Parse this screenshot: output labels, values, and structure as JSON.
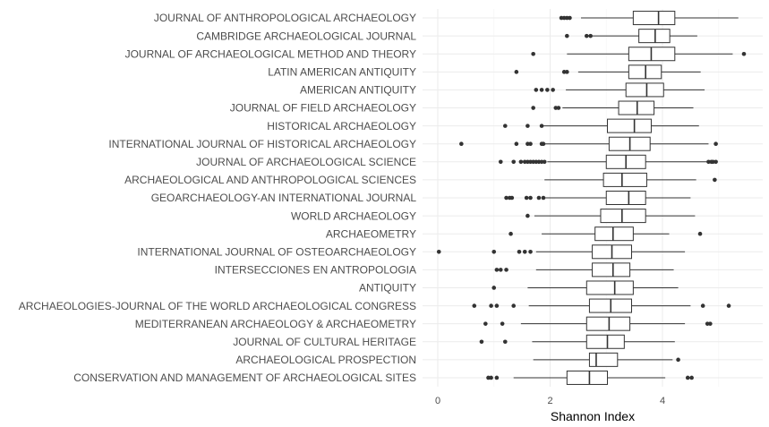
{
  "chart_data": {
    "type": "boxplot",
    "orientation": "horizontal",
    "xlabel": "Shannon Index",
    "ylabel": "",
    "xlim": [
      -0.3,
      5.8
    ],
    "x_ticks": [
      0,
      2,
      4
    ],
    "x_tick_labels": [
      "0",
      "2",
      "4"
    ],
    "grid": true,
    "categories": [
      {
        "name": "JOURNAL OF ANTHROPOLOGICAL ARCHAEOLOGY",
        "min": 2.55,
        "q1": 3.48,
        "median": 3.93,
        "q3": 4.22,
        "max": 5.35,
        "outliers": [
          2.2,
          2.25,
          2.3,
          2.35
        ]
      },
      {
        "name": "CAMBRIDGE ARCHAEOLOGICAL JOURNAL",
        "min": 2.75,
        "q1": 3.58,
        "median": 3.87,
        "q3": 4.13,
        "max": 4.62,
        "outliers": [
          2.3,
          2.65,
          2.72
        ]
      },
      {
        "name": "JOURNAL OF ARCHAEOLOGICAL METHOD AND THEORY",
        "min": 2.3,
        "q1": 3.4,
        "median": 3.8,
        "q3": 4.22,
        "max": 5.25,
        "outliers": [
          1.7,
          5.45
        ]
      },
      {
        "name": "LATIN AMERICAN ANTIQUITY",
        "min": 2.5,
        "q1": 3.4,
        "median": 3.7,
        "q3": 3.98,
        "max": 4.68,
        "outliers": [
          1.4,
          2.25,
          2.3
        ]
      },
      {
        "name": "AMERICAN ANTIQUITY",
        "min": 2.28,
        "q1": 3.35,
        "median": 3.72,
        "q3": 4.02,
        "max": 4.75,
        "outliers": [
          1.75,
          1.85,
          1.95,
          2.05
        ]
      },
      {
        "name": "JOURNAL OF FIELD ARCHAEOLOGY",
        "min": 2.22,
        "q1": 3.22,
        "median": 3.55,
        "q3": 3.85,
        "max": 4.55,
        "outliers": [
          1.7,
          2.1,
          2.15
        ]
      },
      {
        "name": "HISTORICAL ARCHAEOLOGY",
        "min": 1.85,
        "q1": 3.02,
        "median": 3.5,
        "q3": 3.8,
        "max": 4.65,
        "outliers": [
          1.2,
          1.6,
          1.85
        ]
      },
      {
        "name": "INTERNATIONAL JOURNAL OF HISTORICAL ARCHAEOLOGY",
        "min": 1.9,
        "q1": 3.05,
        "median": 3.42,
        "q3": 3.78,
        "max": 4.82,
        "outliers": [
          0.42,
          1.4,
          1.6,
          1.65,
          1.85,
          1.88,
          4.95
        ]
      },
      {
        "name": "JOURNAL OF ARCHAEOLOGICAL SCIENCE",
        "min": 1.95,
        "q1": 3.0,
        "median": 3.35,
        "q3": 3.7,
        "max": 4.8,
        "outliers": [
          1.12,
          1.35,
          1.48,
          1.55,
          1.6,
          1.65,
          1.7,
          1.75,
          1.8,
          1.85,
          1.9,
          4.82,
          4.87,
          4.9,
          4.95
        ]
      },
      {
        "name": "ARCHAEOLOGICAL AND ANTHROPOLOGICAL SCIENCES",
        "min": 1.9,
        "q1": 2.95,
        "median": 3.28,
        "q3": 3.72,
        "max": 4.6,
        "outliers": [
          4.93
        ]
      },
      {
        "name": "GEOARCHAEOLOGY-AN INTERNATIONAL JOURNAL",
        "min": 1.9,
        "q1": 3.0,
        "median": 3.4,
        "q3": 3.7,
        "max": 4.5,
        "outliers": [
          1.22,
          1.28,
          1.32,
          1.58,
          1.65,
          1.8,
          1.88
        ]
      },
      {
        "name": "WORLD ARCHAEOLOGY",
        "min": 1.72,
        "q1": 2.9,
        "median": 3.28,
        "q3": 3.7,
        "max": 4.58,
        "outliers": [
          1.6
        ]
      },
      {
        "name": "ARCHAEOMETRY",
        "min": 1.85,
        "q1": 2.8,
        "median": 3.12,
        "q3": 3.48,
        "max": 4.12,
        "outliers": [
          1.3,
          4.67
        ]
      },
      {
        "name": "INTERNATIONAL JOURNAL OF OSTEOARCHAEOLOGY",
        "min": 1.75,
        "q1": 2.75,
        "median": 3.1,
        "q3": 3.45,
        "max": 4.4,
        "outliers": [
          0.02,
          1.0,
          1.45,
          1.55,
          1.65
        ]
      },
      {
        "name": "INTERSECCIONES EN ANTROPOLOGIA",
        "min": 1.75,
        "q1": 2.75,
        "median": 3.12,
        "q3": 3.42,
        "max": 4.2,
        "outliers": [
          1.05,
          1.12,
          1.22
        ]
      },
      {
        "name": "ANTIQUITY",
        "min": 1.6,
        "q1": 2.65,
        "median": 3.15,
        "q3": 3.48,
        "max": 4.28,
        "outliers": [
          1.0
        ]
      },
      {
        "name": "ARCHAEOLOGIES-JOURNAL OF THE WORLD ARCHAEOLOGICAL CONGRESS",
        "min": 1.62,
        "q1": 2.7,
        "median": 3.08,
        "q3": 3.45,
        "max": 4.5,
        "outliers": [
          0.65,
          0.95,
          1.05,
          1.35,
          4.72,
          5.18
        ]
      },
      {
        "name": "MEDITERRANEAN ARCHAEOLOGY & ARCHAEOMETRY",
        "min": 1.48,
        "q1": 2.65,
        "median": 3.05,
        "q3": 3.42,
        "max": 4.4,
        "outliers": [
          0.85,
          1.15,
          4.8,
          4.85
        ]
      },
      {
        "name": "JOURNAL OF CULTURAL HERITAGE",
        "min": 1.68,
        "q1": 2.65,
        "median": 3.02,
        "q3": 3.32,
        "max": 4.22,
        "outliers": [
          0.78,
          1.2
        ]
      },
      {
        "name": "ARCHAEOLOGICAL PROSPECTION",
        "min": 1.7,
        "q1": 2.7,
        "median": 2.82,
        "q3": 3.2,
        "max": 4.18,
        "outliers": [
          4.28
        ]
      },
      {
        "name": "CONSERVATION AND MANAGEMENT OF ARCHAEOLOGICAL SITES",
        "min": 1.35,
        "q1": 2.3,
        "median": 2.7,
        "q3": 3.02,
        "max": 4.05,
        "outliers": [
          0.9,
          0.95,
          1.05,
          4.45,
          4.52
        ]
      }
    ]
  }
}
